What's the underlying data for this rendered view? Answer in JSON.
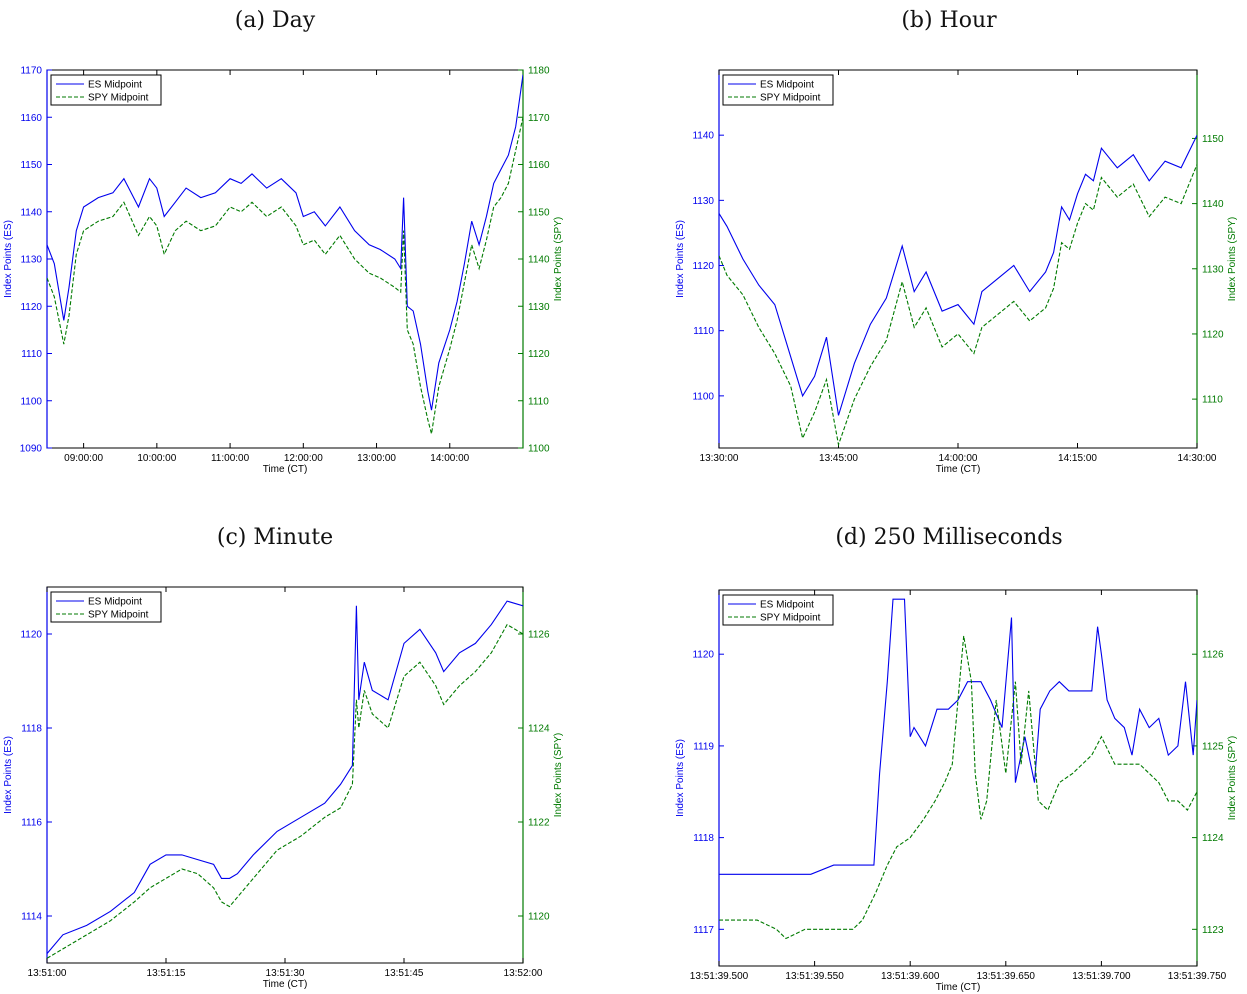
{
  "colors": {
    "es": "#0000ee",
    "spy": "#007a00",
    "axis": "#000000"
  },
  "chart_data": [
    {
      "type": "line",
      "title": "(a) Day",
      "xlabel": "Time (CT)",
      "ylabel": "Index Points (ES)",
      "y2label": "Index Points (SPY)",
      "legend_position": "top-left",
      "grid": false,
      "xlim": [
        8.5,
        15.0
      ],
      "xticks": [
        {
          "v": 9.0,
          "label": "09:00:00"
        },
        {
          "v": 10.0,
          "label": "10:00:00"
        },
        {
          "v": 11.0,
          "label": "11:00:00"
        },
        {
          "v": 12.0,
          "label": "12:00:00"
        },
        {
          "v": 13.0,
          "label": "13:00:00"
        },
        {
          "v": 14.0,
          "label": "14:00:00"
        }
      ],
      "ylim": [
        1090,
        1170
      ],
      "yticks": [
        1090,
        1100,
        1110,
        1120,
        1130,
        1140,
        1150,
        1160,
        1170
      ],
      "y2lim": [
        1100,
        1180
      ],
      "y2ticks": [
        1100,
        1110,
        1120,
        1130,
        1140,
        1150,
        1160,
        1170,
        1180
      ],
      "series": [
        {
          "name": "ES Midpoint",
          "axis": "left",
          "style": "solid",
          "x": [
            8.5,
            8.6,
            8.73,
            8.8,
            8.9,
            9.0,
            9.2,
            9.4,
            9.55,
            9.75,
            9.9,
            10.0,
            10.1,
            10.25,
            10.4,
            10.6,
            10.8,
            11.0,
            11.15,
            11.3,
            11.5,
            11.7,
            11.9,
            12.0,
            12.15,
            12.3,
            12.5,
            12.7,
            12.9,
            13.05,
            13.25,
            13.33,
            13.37,
            13.42,
            13.5,
            13.6,
            13.7,
            13.75,
            13.85,
            14.0,
            14.1,
            14.2,
            14.3,
            14.4,
            14.5,
            14.6,
            14.7,
            14.8,
            14.9,
            15.0
          ],
          "y": [
            1133,
            1129,
            1117,
            1124,
            1136,
            1141,
            1143,
            1144,
            1147,
            1141,
            1147,
            1145,
            1139,
            1142,
            1145,
            1143,
            1144,
            1147,
            1146,
            1148,
            1145,
            1147,
            1144,
            1139,
            1140,
            1137,
            1141,
            1136,
            1133,
            1132,
            1130,
            1128,
            1143,
            1120,
            1119,
            1112,
            1102,
            1098,
            1108,
            1115,
            1121,
            1129,
            1138,
            1133,
            1139,
            1146,
            1149,
            1152,
            1158,
            1169
          ]
        },
        {
          "name": "SPY Midpoint",
          "axis": "right",
          "style": "dashed",
          "x": [
            8.5,
            8.6,
            8.73,
            8.8,
            8.9,
            9.0,
            9.2,
            9.4,
            9.55,
            9.75,
            9.9,
            10.0,
            10.1,
            10.25,
            10.4,
            10.6,
            10.8,
            11.0,
            11.15,
            11.3,
            11.5,
            11.7,
            11.9,
            12.0,
            12.15,
            12.3,
            12.5,
            12.7,
            12.9,
            13.05,
            13.25,
            13.33,
            13.37,
            13.42,
            13.5,
            13.6,
            13.7,
            13.75,
            13.85,
            14.0,
            14.1,
            14.2,
            14.3,
            14.4,
            14.5,
            14.6,
            14.7,
            14.8,
            14.9,
            15.0
          ],
          "y": [
            1136,
            1132,
            1122,
            1128,
            1141,
            1146,
            1148,
            1149,
            1152,
            1145,
            1149,
            1147,
            1141,
            1146,
            1148,
            1146,
            1147,
            1151,
            1150,
            1152,
            1149,
            1151,
            1147,
            1143,
            1144,
            1141,
            1145,
            1140,
            1137,
            1136,
            1134,
            1133,
            1146,
            1125,
            1122,
            1113,
            1106,
            1103,
            1113,
            1121,
            1127,
            1135,
            1143,
            1138,
            1144,
            1151,
            1153,
            1156,
            1163,
            1170
          ]
        }
      ]
    },
    {
      "type": "line",
      "title": "(b) Hour",
      "xlabel": "Time (CT)",
      "ylabel": "Index Points (ES)",
      "y2label": "Index Points (SPY)",
      "legend_position": "top-left",
      "grid": false,
      "xlim": [
        0,
        60
      ],
      "xticks": [
        {
          "v": 0,
          "label": "13:30:00"
        },
        {
          "v": 15,
          "label": "13:45:00"
        },
        {
          "v": 30,
          "label": "14:00:00"
        },
        {
          "v": 45,
          "label": "14:15:00"
        },
        {
          "v": 60,
          "label": "14:30:00"
        }
      ],
      "ylim": [
        1092,
        1150
      ],
      "yticks": [
        1100,
        1110,
        1120,
        1130,
        1140
      ],
      "y2lim": [
        1102.5,
        1160.5
      ],
      "y2ticks": [
        1110,
        1120,
        1130,
        1140,
        1150
      ],
      "series": [
        {
          "name": "ES Midpoint",
          "axis": "left",
          "style": "solid",
          "x": [
            0,
            1,
            3,
            5,
            7,
            9,
            10.5,
            12,
            13.5,
            15,
            17,
            19,
            21,
            23,
            24.5,
            26,
            28,
            30,
            32,
            33,
            35,
            37,
            39,
            41,
            42,
            43,
            44,
            45,
            46,
            47,
            48,
            50,
            52,
            54,
            56,
            58,
            60
          ],
          "y": [
            1128,
            1126,
            1121,
            1117,
            1114,
            1106,
            1100,
            1103,
            1109,
            1097,
            1105,
            1111,
            1115,
            1123,
            1116,
            1119,
            1113,
            1114,
            1111,
            1116,
            1118,
            1120,
            1116,
            1119,
            1122,
            1129,
            1127,
            1131,
            1134,
            1133,
            1138,
            1135,
            1137,
            1133,
            1136,
            1135,
            1140
          ]
        },
        {
          "name": "SPY Midpoint",
          "axis": "right",
          "style": "dashed",
          "x": [
            0,
            1,
            3,
            5,
            7,
            9,
            10.5,
            12,
            13.5,
            15,
            17,
            19,
            21,
            23,
            24.5,
            26,
            28,
            30,
            32,
            33,
            35,
            37,
            39,
            41,
            42,
            43,
            44,
            45,
            46,
            47,
            48,
            50,
            52,
            54,
            56,
            58,
            60
          ],
          "y": [
            1132,
            1129,
            1126,
            1121,
            1117,
            1112,
            1104,
            1108,
            1113,
            1103,
            1110,
            1115,
            1119,
            1128,
            1121,
            1124,
            1118,
            1120,
            1117,
            1121,
            1123,
            1125,
            1122,
            1124,
            1127,
            1134,
            1133,
            1137,
            1140,
            1139,
            1144,
            1141,
            1143,
            1138,
            1141,
            1140,
            1146
          ]
        }
      ]
    },
    {
      "type": "line",
      "title": "(c) Minute",
      "xlabel": "Time (CT)",
      "ylabel": "Index Points (ES)",
      "y2label": "Index Points (SPY)",
      "legend_position": "top-left",
      "grid": false,
      "xlim": [
        0,
        60
      ],
      "xticks": [
        {
          "v": 0,
          "label": "13:51:00"
        },
        {
          "v": 15,
          "label": "13:51:15"
        },
        {
          "v": 30,
          "label": "13:51:30"
        },
        {
          "v": 45,
          "label": "13:51:45"
        },
        {
          "v": 60,
          "label": "13:52:00"
        }
      ],
      "ylim": [
        1113,
        1121
      ],
      "yticks": [
        1114,
        1116,
        1118,
        1120
      ],
      "y2lim": [
        1119,
        1127
      ],
      "y2ticks": [
        1120,
        1122,
        1124,
        1126
      ],
      "series": [
        {
          "name": "ES Midpoint",
          "axis": "left",
          "style": "solid",
          "x": [
            0,
            2,
            5,
            8,
            11,
            13,
            15,
            17,
            19,
            21,
            22,
            23,
            24,
            26,
            29,
            32,
            35,
            37,
            38.5,
            39,
            39.3,
            40,
            41,
            43,
            45,
            47,
            49,
            50,
            52,
            54,
            56,
            58,
            60
          ],
          "y": [
            1113.2,
            1113.6,
            1113.8,
            1114.1,
            1114.5,
            1115.1,
            1115.3,
            1115.3,
            1115.2,
            1115.1,
            1114.8,
            1114.8,
            1114.9,
            1115.3,
            1115.8,
            1116.1,
            1116.4,
            1116.8,
            1117.2,
            1120.6,
            1118.6,
            1119.4,
            1118.8,
            1118.6,
            1119.8,
            1120.1,
            1119.6,
            1119.2,
            1119.6,
            1119.8,
            1120.2,
            1120.7,
            1120.6
          ]
        },
        {
          "name": "SPY Midpoint",
          "axis": "right",
          "style": "dashed",
          "x": [
            0,
            2,
            5,
            8,
            11,
            13,
            15,
            17,
            19,
            21,
            22,
            23,
            24,
            26,
            29,
            32,
            35,
            37,
            38.5,
            39,
            39.3,
            40,
            41,
            43,
            45,
            47,
            49,
            50,
            52,
            54,
            56,
            58,
            60
          ],
          "y": [
            1119.1,
            1119.3,
            1119.6,
            1119.9,
            1120.3,
            1120.6,
            1120.8,
            1121.0,
            1120.9,
            1120.6,
            1120.3,
            1120.2,
            1120.4,
            1120.8,
            1121.4,
            1121.7,
            1122.1,
            1122.3,
            1122.8,
            1124.6,
            1124.0,
            1124.8,
            1124.3,
            1124.0,
            1125.1,
            1125.4,
            1124.9,
            1124.5,
            1124.9,
            1125.2,
            1125.6,
            1126.2,
            1126.0
          ]
        }
      ]
    },
    {
      "type": "line",
      "title": "(d) 250 Milliseconds",
      "xlabel": "Time (CT)",
      "ylabel": "Index Points (ES)",
      "y2label": "Index Points (SPY)",
      "legend_position": "top-left",
      "grid": false,
      "xlim": [
        0.5,
        0.75
      ],
      "xticks": [
        {
          "v": 0.5,
          "label": "13:51:39.500"
        },
        {
          "v": 0.55,
          "label": "13:51:39.550"
        },
        {
          "v": 0.6,
          "label": "13:51:39.600"
        },
        {
          "v": 0.65,
          "label": "13:51:39.650"
        },
        {
          "v": 0.7,
          "label": "13:51:39.700"
        },
        {
          "v": 0.75,
          "label": "13:51:39.750"
        }
      ],
      "ylim": [
        1116.6,
        1120.7
      ],
      "yticks": [
        1117,
        1118,
        1119,
        1120
      ],
      "y2lim": [
        1122.6,
        1126.7
      ],
      "y2ticks": [
        1123,
        1124,
        1125,
        1126
      ],
      "series": [
        {
          "name": "ES Midpoint",
          "axis": "left",
          "style": "solid",
          "x": [
            0.5,
            0.51,
            0.52,
            0.53,
            0.54,
            0.548,
            0.56,
            0.575,
            0.581,
            0.584,
            0.588,
            0.591,
            0.597,
            0.6,
            0.602,
            0.608,
            0.614,
            0.62,
            0.625,
            0.63,
            0.637,
            0.642,
            0.648,
            0.653,
            0.655,
            0.66,
            0.665,
            0.668,
            0.673,
            0.678,
            0.683,
            0.69,
            0.695,
            0.698,
            0.7,
            0.703,
            0.707,
            0.712,
            0.716,
            0.72,
            0.725,
            0.73,
            0.735,
            0.74,
            0.744,
            0.748,
            0.75
          ],
          "y": [
            1117.6,
            1117.6,
            1117.6,
            1117.6,
            1117.6,
            1117.6,
            1117.7,
            1117.7,
            1117.7,
            1118.7,
            1119.7,
            1120.6,
            1120.6,
            1119.1,
            1119.2,
            1119.0,
            1119.4,
            1119.4,
            1119.5,
            1119.7,
            1119.7,
            1119.5,
            1119.2,
            1120.4,
            1118.6,
            1119.1,
            1118.6,
            1119.4,
            1119.6,
            1119.7,
            1119.6,
            1119.6,
            1119.6,
            1120.3,
            1120.0,
            1119.5,
            1119.3,
            1119.2,
            1118.9,
            1119.4,
            1119.2,
            1119.3,
            1118.9,
            1119.0,
            1119.7,
            1118.9,
            1119.5
          ]
        },
        {
          "name": "SPY Midpoint",
          "axis": "right",
          "style": "dashed",
          "x": [
            0.5,
            0.51,
            0.52,
            0.53,
            0.535,
            0.545,
            0.555,
            0.57,
            0.575,
            0.582,
            0.588,
            0.593,
            0.6,
            0.607,
            0.613,
            0.618,
            0.622,
            0.628,
            0.632,
            0.634,
            0.637,
            0.64,
            0.645,
            0.65,
            0.655,
            0.658,
            0.662,
            0.667,
            0.672,
            0.678,
            0.685,
            0.69,
            0.695,
            0.7,
            0.707,
            0.715,
            0.72,
            0.725,
            0.73,
            0.735,
            0.74,
            0.745,
            0.75
          ],
          "y": [
            1123.1,
            1123.1,
            1123.1,
            1123.0,
            1122.9,
            1123.0,
            1123.0,
            1123.0,
            1123.1,
            1123.4,
            1123.7,
            1123.9,
            1124.0,
            1124.2,
            1124.4,
            1124.6,
            1124.8,
            1126.2,
            1125.7,
            1124.7,
            1124.2,
            1124.4,
            1125.5,
            1124.7,
            1125.7,
            1124.8,
            1125.6,
            1124.4,
            1124.3,
            1124.6,
            1124.7,
            1124.8,
            1124.9,
            1125.1,
            1124.8,
            1124.8,
            1124.8,
            1124.7,
            1124.6,
            1124.4,
            1124.4,
            1124.3,
            1124.5
          ]
        }
      ]
    }
  ]
}
